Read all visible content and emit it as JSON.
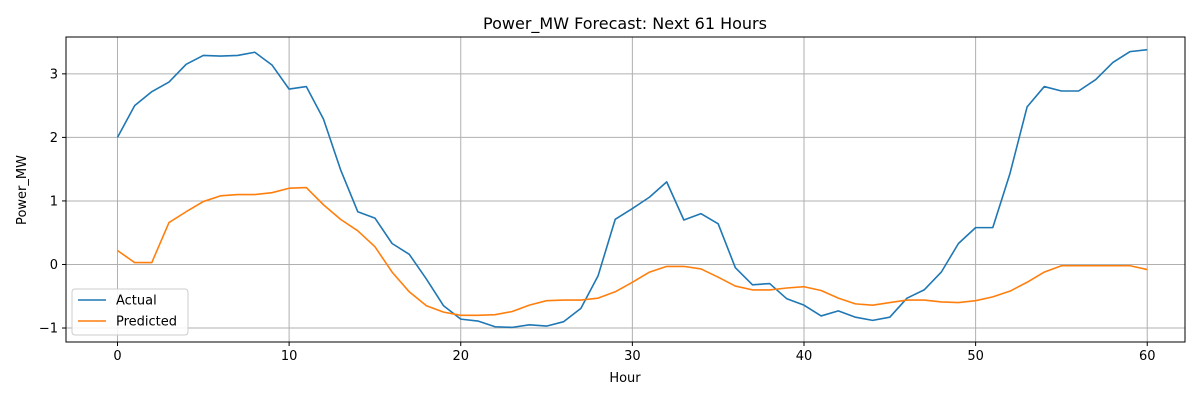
{
  "chart_data": {
    "type": "line",
    "title": "Power_MW Forecast: Next 61 Hours",
    "xlabel": "Hour",
    "ylabel": "Power_MW",
    "xlim": [
      -3,
      62.2
    ],
    "ylim": [
      -1.22,
      3.58
    ],
    "xticks": [
      0,
      10,
      20,
      30,
      40,
      50,
      60
    ],
    "yticks": [
      -1,
      0,
      1,
      2,
      3
    ],
    "ytick_labels": [
      "−1",
      "0",
      "1",
      "2",
      "3"
    ],
    "grid": true,
    "legend_position": "lower-left",
    "x": [
      0,
      1,
      2,
      3,
      4,
      5,
      6,
      7,
      8,
      9,
      10,
      11,
      12,
      13,
      14,
      15,
      16,
      17,
      18,
      19,
      20,
      21,
      22,
      23,
      24,
      25,
      26,
      27,
      28,
      29,
      30,
      31,
      32,
      33,
      34,
      35,
      36,
      37,
      38,
      39,
      40,
      41,
      42,
      43,
      44,
      45,
      46,
      47,
      48,
      49,
      50,
      51,
      52,
      53,
      54,
      55,
      56,
      57,
      58,
      59,
      60
    ],
    "series": [
      {
        "name": "Actual",
        "color": "#1f77b4",
        "values": [
          2.0,
          2.5,
          2.72,
          2.87,
          3.15,
          3.29,
          3.28,
          3.29,
          3.34,
          3.14,
          2.76,
          2.8,
          2.29,
          1.49,
          0.83,
          0.73,
          0.33,
          0.16,
          -0.23,
          -0.65,
          -0.86,
          -0.89,
          -0.98,
          -0.99,
          -0.95,
          -0.97,
          -0.9,
          -0.69,
          -0.18,
          0.71,
          0.88,
          1.06,
          1.3,
          0.7,
          0.8,
          0.64,
          -0.05,
          -0.32,
          -0.3,
          -0.54,
          -0.64,
          -0.81,
          -0.73,
          -0.83,
          -0.88,
          -0.83,
          -0.53,
          -0.4,
          -0.12,
          0.33,
          0.58,
          0.58,
          1.43,
          2.48,
          2.8,
          2.73,
          2.73,
          2.91,
          3.18,
          3.35,
          3.38
        ]
      },
      {
        "name": "Predicted",
        "color": "#ff7f0e",
        "values": [
          0.22,
          0.03,
          0.03,
          0.66,
          0.83,
          0.99,
          1.08,
          1.1,
          1.1,
          1.13,
          1.2,
          1.21,
          0.94,
          0.71,
          0.53,
          0.28,
          -0.12,
          -0.43,
          -0.65,
          -0.75,
          -0.8,
          -0.8,
          -0.79,
          -0.74,
          -0.64,
          -0.57,
          -0.56,
          -0.56,
          -0.53,
          -0.43,
          -0.28,
          -0.12,
          -0.03,
          -0.03,
          -0.07,
          -0.2,
          -0.34,
          -0.4,
          -0.4,
          -0.37,
          -0.35,
          -0.41,
          -0.53,
          -0.62,
          -0.64,
          -0.6,
          -0.56,
          -0.56,
          -0.59,
          -0.6,
          -0.57,
          -0.51,
          -0.42,
          -0.28,
          -0.12,
          -0.02,
          -0.02,
          -0.02,
          -0.02,
          -0.02,
          -0.08
        ]
      }
    ]
  }
}
